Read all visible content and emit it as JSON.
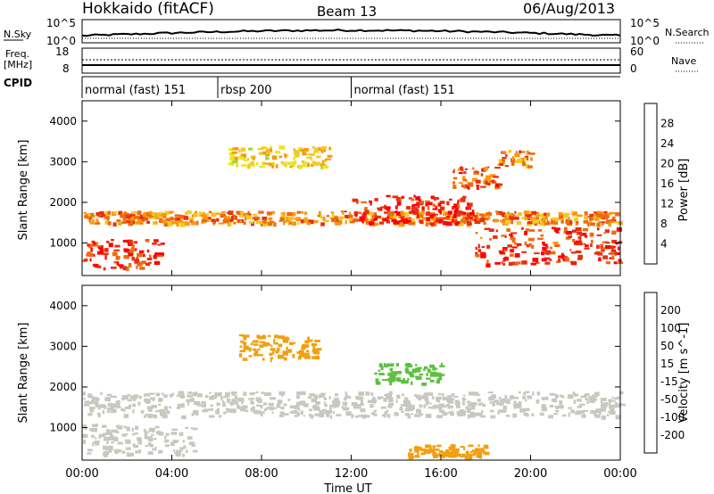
{
  "header": {
    "station": "Hokkaido (fitACF)",
    "beam": "Beam 13",
    "date": "06/Aug/2013"
  },
  "strip_labels": {
    "nsky": "N.Sky",
    "freq_line1": "Freq.",
    "freq_line2": "[MHz]",
    "cpid": "CPID",
    "nsearch": "N.Search",
    "nave": "Nave"
  },
  "noise_axis": {
    "left_ticks": [
      "10^5",
      "10^0"
    ],
    "right_ticks": [
      "10^5",
      "10^0"
    ]
  },
  "freq_axis": {
    "left_ticks": [
      "18",
      "8"
    ],
    "right_ticks": [
      "60",
      "0"
    ]
  },
  "cpid_segments": [
    {
      "label": "normal (fast) 151",
      "start_hour": 0,
      "end_hour": 6.05
    },
    {
      "label": "rbsp 200",
      "start_hour": 6.05,
      "end_hour": 12.0
    },
    {
      "label": "normal (fast) 151",
      "start_hour": 12.0,
      "end_hour": 24
    }
  ],
  "chart_data": [
    {
      "type": "heatmap",
      "quantity": "power",
      "xlabel": "",
      "ylabel": "Slant Range [km]",
      "xlim": [
        0,
        24
      ],
      "ylim": [
        200,
        4500
      ],
      "yticks": [
        "4000",
        "3000",
        "2000",
        "1000"
      ],
      "colorbar": {
        "label": "Power [dB]",
        "ticks": [
          "28",
          "24",
          "20",
          "16",
          "12",
          "8",
          "4"
        ],
        "colors": [
          "#0000ff",
          "#1e4fd0",
          "#2e7f8f",
          "#3a9b66",
          "#58c040",
          "#9ddc2c",
          "#e8e820",
          "#f7c820",
          "#f79a12",
          "#f06a10",
          "#e83010",
          "#ff0000"
        ]
      },
      "bands": [
        {
          "t0": 0.0,
          "t1": 24.0,
          "r0": 1500,
          "r1": 1800,
          "level": 22
        },
        {
          "t0": 0.0,
          "t1": 3.5,
          "r0": 400,
          "r1": 1100,
          "level": 26
        },
        {
          "t0": 6.5,
          "t1": 11.0,
          "r0": 2900,
          "r1": 3400,
          "level": 18
        },
        {
          "t0": 12.0,
          "t1": 17.5,
          "r0": 1500,
          "r1": 2200,
          "level": 28
        },
        {
          "t0": 17.5,
          "t1": 24.0,
          "r0": 500,
          "r1": 1400,
          "level": 26
        },
        {
          "t0": 16.5,
          "t1": 18.5,
          "r0": 2400,
          "r1": 2900,
          "level": 24
        },
        {
          "t0": 18.5,
          "t1": 20.0,
          "r0": 2900,
          "r1": 3300,
          "level": 22
        }
      ]
    },
    {
      "type": "heatmap",
      "quantity": "velocity",
      "xlabel": "Time UT",
      "ylabel": "Slant Range [km]",
      "xlim": [
        0,
        24
      ],
      "ylim": [
        200,
        4500
      ],
      "yticks": [
        "4000",
        "3000",
        "2000",
        "1000"
      ],
      "xticks": [
        "00:00",
        "04:00",
        "08:00",
        "12:00",
        "16:00",
        "20:00",
        "00:00"
      ],
      "colorbar": {
        "label": "Velocity [m s^-1]",
        "ticks": [
          "200",
          "100",
          "50",
          "15",
          "-15",
          "-50",
          "-100",
          "-200"
        ],
        "colors": [
          "#1e3cc8",
          "#2e6aa8",
          "#3b8f5a",
          "#5ec040",
          "#c8c8c0",
          "#f0a010",
          "#f07810",
          "#f04010",
          "#e81010"
        ]
      },
      "bands": [
        {
          "t0": 0.0,
          "t1": 24.0,
          "r0": 1300,
          "r1": 1900,
          "level": 0
        },
        {
          "t0": 0.0,
          "t1": 5.0,
          "r0": 350,
          "r1": 1100,
          "level": 0
        },
        {
          "t0": 7.0,
          "t1": 10.5,
          "r0": 2700,
          "r1": 3300,
          "level": -40
        },
        {
          "t0": 13.0,
          "t1": 16.0,
          "r0": 2100,
          "r1": 2600,
          "level": 40
        },
        {
          "t0": 14.5,
          "t1": 18.0,
          "r0": 300,
          "r1": 600,
          "level": -40
        }
      ]
    }
  ]
}
